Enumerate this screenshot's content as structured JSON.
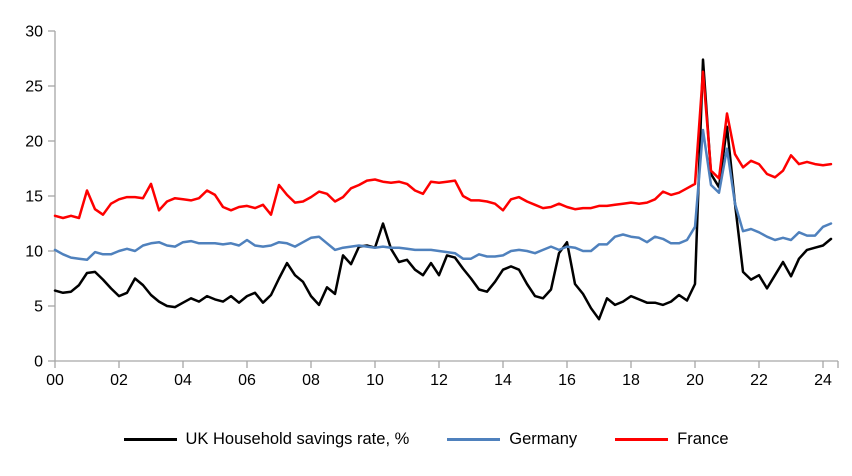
{
  "chart_data": {
    "type": "line",
    "title": "",
    "xlabel": "",
    "ylabel": "",
    "x_unit": "year (quarterly data)",
    "x_start_year": 2000,
    "x_quarter_step": 0.25,
    "x_tick_labels": [
      "00",
      "02",
      "04",
      "06",
      "08",
      "10",
      "12",
      "14",
      "16",
      "18",
      "20",
      "22",
      "24"
    ],
    "x_tick_years": [
      2000,
      2002,
      2004,
      2006,
      2008,
      2010,
      2012,
      2014,
      2016,
      2018,
      2020,
      2022,
      2024
    ],
    "ylim": [
      0,
      30
    ],
    "y_ticks": [
      0,
      5,
      10,
      15,
      20,
      25,
      30
    ],
    "grid": "off",
    "legend_position": "bottom",
    "axis_color": "#a6a6a6",
    "text_color": "#000000",
    "series": [
      {
        "name": "UK Household savings rate, %",
        "color": "#000000",
        "values": [
          6.4,
          6.2,
          6.3,
          6.9,
          8.0,
          8.1,
          7.4,
          6.6,
          5.9,
          6.2,
          7.5,
          6.9,
          6.0,
          5.4,
          5.0,
          4.9,
          5.3,
          5.7,
          5.4,
          5.9,
          5.6,
          5.4,
          5.9,
          5.3,
          5.9,
          6.2,
          5.3,
          6.0,
          7.5,
          8.9,
          7.8,
          7.2,
          5.9,
          5.1,
          6.7,
          6.1,
          9.6,
          8.8,
          10.4,
          10.5,
          10.3,
          12.5,
          10.2,
          9.0,
          9.2,
          8.3,
          7.8,
          8.9,
          7.8,
          9.6,
          9.4,
          8.4,
          7.5,
          6.5,
          6.3,
          7.2,
          8.3,
          8.6,
          8.3,
          7.0,
          5.9,
          5.7,
          6.5,
          9.8,
          10.8,
          7.0,
          6.1,
          4.8,
          3.8,
          5.7,
          5.1,
          5.4,
          5.9,
          5.6,
          5.3,
          5.3,
          5.1,
          5.4,
          6.0,
          5.5,
          7.0,
          27.4,
          17.0,
          15.8,
          21.3,
          14.3,
          8.1,
          7.4,
          7.8,
          6.6,
          7.8,
          9.0,
          7.7,
          9.3,
          10.1,
          10.3,
          10.5,
          11.1
        ]
      },
      {
        "name": "Germany",
        "color": "#4f81bd",
        "values": [
          10.1,
          9.7,
          9.4,
          9.3,
          9.2,
          9.9,
          9.7,
          9.7,
          10.0,
          10.2,
          10.0,
          10.5,
          10.7,
          10.8,
          10.5,
          10.4,
          10.8,
          10.9,
          10.7,
          10.7,
          10.7,
          10.6,
          10.7,
          10.5,
          11.0,
          10.5,
          10.4,
          10.5,
          10.8,
          10.7,
          10.4,
          10.8,
          11.2,
          11.3,
          10.7,
          10.1,
          10.3,
          10.4,
          10.5,
          10.4,
          10.3,
          10.4,
          10.3,
          10.3,
          10.2,
          10.1,
          10.1,
          10.1,
          10.0,
          9.9,
          9.8,
          9.3,
          9.3,
          9.7,
          9.5,
          9.5,
          9.6,
          10.0,
          10.1,
          10.0,
          9.8,
          10.1,
          10.4,
          10.1,
          10.4,
          10.3,
          10.0,
          10.0,
          10.6,
          10.6,
          11.3,
          11.5,
          11.3,
          11.2,
          10.8,
          11.3,
          11.1,
          10.7,
          10.7,
          11.0,
          12.2,
          21.0,
          16.0,
          15.3,
          19.3,
          14.3,
          11.8,
          12.0,
          11.7,
          11.3,
          11.0,
          11.2,
          11.0,
          11.7,
          11.4,
          11.4,
          12.2,
          12.5
        ]
      },
      {
        "name": "France",
        "color": "#fe0000",
        "values": [
          13.2,
          13.0,
          13.2,
          13.0,
          15.5,
          13.8,
          13.3,
          14.3,
          14.7,
          14.9,
          14.9,
          14.8,
          16.1,
          13.7,
          14.5,
          14.8,
          14.7,
          14.6,
          14.8,
          15.5,
          15.1,
          14.0,
          13.7,
          14.0,
          14.1,
          13.9,
          14.2,
          13.3,
          16.0,
          15.1,
          14.4,
          14.5,
          14.9,
          15.4,
          15.2,
          14.5,
          14.9,
          15.7,
          16.0,
          16.4,
          16.5,
          16.3,
          16.2,
          16.3,
          16.1,
          15.5,
          15.2,
          16.3,
          16.2,
          16.3,
          16.4,
          15.0,
          14.6,
          14.6,
          14.5,
          14.3,
          13.7,
          14.7,
          14.9,
          14.5,
          14.2,
          13.9,
          14.0,
          14.3,
          14.0,
          13.8,
          13.9,
          13.9,
          14.1,
          14.1,
          14.2,
          14.3,
          14.4,
          14.3,
          14.4,
          14.7,
          15.4,
          15.1,
          15.3,
          15.7,
          16.1,
          26.3,
          17.3,
          16.6,
          22.5,
          18.8,
          17.6,
          18.2,
          17.9,
          17.0,
          16.7,
          17.3,
          18.7,
          17.9,
          18.1,
          17.9,
          17.8,
          17.9
        ]
      }
    ]
  },
  "legend": {
    "items": [
      {
        "label": "UK Household savings rate, %"
      },
      {
        "label": "Germany"
      },
      {
        "label": "France"
      }
    ]
  }
}
